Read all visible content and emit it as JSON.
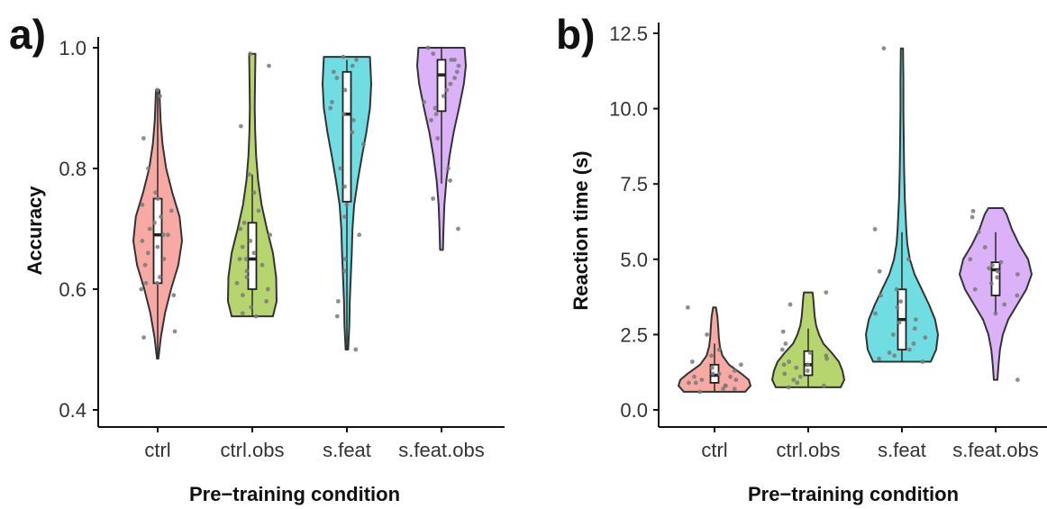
{
  "chart_data": [
    {
      "type": "violin",
      "panel_label": "a)",
      "xlabel": "Pre−training condition",
      "ylabel": "Accuracy",
      "ylim": [
        0.4,
        1.0
      ],
      "yticks": [
        "0.4",
        "0.6",
        "0.8",
        "1.0"
      ],
      "ytick_values": [
        0.4,
        0.6,
        0.8,
        1.0
      ],
      "grid": false,
      "legend": "none",
      "categories": [
        "ctrl",
        "ctrl.obs",
        "s.feat",
        "s.feat.obs"
      ],
      "colors": [
        "#f8a9a4",
        "#b7d56f",
        "#6fdde2",
        "#dbb1f8"
      ],
      "groups": [
        {
          "name": "ctrl",
          "box": {
            "q1": 0.61,
            "median": 0.69,
            "q3": 0.75,
            "whisker_low": 0.485,
            "whisker_high": 0.93
          },
          "violin": {
            "y": [
              0.485,
              0.52,
              0.56,
              0.6,
              0.64,
              0.68,
              0.72,
              0.76,
              0.8,
              0.84,
              0.88,
              0.93
            ],
            "w": [
              0.03,
              0.13,
              0.3,
              0.55,
              0.85,
              1.0,
              0.9,
              0.6,
              0.35,
              0.2,
              0.12,
              0.07
            ]
          },
          "points": [
            0.93,
            0.92,
            0.85,
            0.8,
            0.76,
            0.75,
            0.74,
            0.73,
            0.72,
            0.71,
            0.7,
            0.69,
            0.69,
            0.68,
            0.67,
            0.66,
            0.65,
            0.64,
            0.62,
            0.61,
            0.61,
            0.6,
            0.59,
            0.53,
            0.52
          ]
        },
        {
          "name": "ctrl.obs",
          "box": {
            "q1": 0.6,
            "median": 0.65,
            "q3": 0.71,
            "whisker_low": 0.555,
            "whisker_high": 0.79
          },
          "violin": {
            "y": [
              0.555,
              0.58,
              0.62,
              0.66,
              0.7,
              0.74,
              0.78,
              0.82,
              0.86,
              0.9,
              0.94,
              0.99
            ],
            "w": [
              0.85,
              1.0,
              0.98,
              0.85,
              0.6,
              0.38,
              0.24,
              0.16,
              0.12,
              0.1,
              0.11,
              0.13
            ]
          },
          "points": [
            0.99,
            0.97,
            0.87,
            0.79,
            0.76,
            0.73,
            0.71,
            0.7,
            0.69,
            0.68,
            0.67,
            0.66,
            0.65,
            0.65,
            0.64,
            0.63,
            0.62,
            0.61,
            0.6,
            0.59,
            0.58,
            0.57,
            0.56,
            0.555
          ]
        },
        {
          "name": "s.feat",
          "box": {
            "q1": 0.745,
            "median": 0.89,
            "q3": 0.96,
            "whisker_low": 0.5,
            "whisker_high": 0.98
          },
          "violin": {
            "y": [
              0.5,
              0.54,
              0.58,
              0.62,
              0.66,
              0.7,
              0.74,
              0.78,
              0.82,
              0.86,
              0.9,
              0.94,
              0.985
            ],
            "w": [
              0.05,
              0.1,
              0.12,
              0.16,
              0.2,
              0.23,
              0.3,
              0.45,
              0.62,
              0.8,
              0.95,
              1.0,
              0.95
            ]
          },
          "points": [
            0.985,
            0.98,
            0.97,
            0.96,
            0.95,
            0.93,
            0.91,
            0.9,
            0.89,
            0.88,
            0.86,
            0.84,
            0.8,
            0.77,
            0.74,
            0.72,
            0.69,
            0.65,
            0.63,
            0.58,
            0.555,
            0.5
          ]
        },
        {
          "name": "s.feat.obs",
          "box": {
            "q1": 0.895,
            "median": 0.955,
            "q3": 0.98,
            "whisker_low": 0.775,
            "whisker_high": 1.0
          },
          "violin": {
            "y": [
              0.665,
              0.7,
              0.74,
              0.78,
              0.82,
              0.86,
              0.9,
              0.94,
              0.97,
              1.0
            ],
            "w": [
              0.06,
              0.08,
              0.12,
              0.2,
              0.33,
              0.5,
              0.72,
              0.92,
              1.0,
              0.95
            ]
          },
          "points": [
            1.0,
            0.99,
            0.98,
            0.98,
            0.97,
            0.96,
            0.95,
            0.94,
            0.93,
            0.92,
            0.91,
            0.9,
            0.89,
            0.88,
            0.85,
            0.8,
            0.78,
            0.75,
            0.7
          ]
        }
      ]
    },
    {
      "type": "violin",
      "panel_label": "b)",
      "xlabel": "Pre−training condition",
      "ylabel": "Reaction time (s)",
      "ylim": [
        0,
        12.5
      ],
      "yticks": [
        "0.0",
        "2.5",
        "5.0",
        "7.5",
        "10.0",
        "12.5"
      ],
      "ytick_values": [
        0,
        2.5,
        5.0,
        7.5,
        10.0,
        12.5
      ],
      "grid": false,
      "legend": "none",
      "categories": [
        "ctrl",
        "ctrl.obs",
        "s.feat",
        "s.feat.obs"
      ],
      "colors": [
        "#f8a9a4",
        "#b7d56f",
        "#6fdde2",
        "#dbb1f8"
      ],
      "groups": [
        {
          "name": "ctrl",
          "box": {
            "q1": 0.9,
            "median": 1.15,
            "q3": 1.5,
            "whisker_low": 0.6,
            "whisker_high": 2.2
          },
          "violin": {
            "y": [
              0.6,
              0.8,
              1.0,
              1.2,
              1.5,
              1.8,
              2.1,
              2.4,
              2.8,
              3.1,
              3.4
            ],
            "w": [
              0.85,
              1.0,
              0.95,
              0.75,
              0.4,
              0.22,
              0.15,
              0.12,
              0.1,
              0.08,
              0.04
            ]
          },
          "points": [
            3.4,
            2.5,
            2.0,
            1.8,
            1.6,
            1.5,
            1.4,
            1.3,
            1.2,
            1.2,
            1.1,
            1.1,
            1.0,
            1.0,
            0.9,
            0.9,
            0.8,
            0.8,
            0.7,
            0.7,
            0.6
          ]
        },
        {
          "name": "ctrl.obs",
          "box": {
            "q1": 1.15,
            "median": 1.5,
            "q3": 1.95,
            "whisker_low": 0.75,
            "whisker_high": 2.7
          },
          "violin": {
            "y": [
              0.75,
              1.0,
              1.3,
              1.6,
              1.9,
              2.2,
              2.5,
              2.8,
              3.1,
              3.4,
              3.7,
              3.9
            ],
            "w": [
              0.9,
              1.0,
              0.95,
              0.85,
              0.65,
              0.42,
              0.3,
              0.22,
              0.18,
              0.16,
              0.14,
              0.12
            ]
          },
          "points": [
            3.9,
            3.5,
            2.6,
            2.2,
            2.0,
            1.9,
            1.8,
            1.7,
            1.6,
            1.5,
            1.5,
            1.4,
            1.3,
            1.2,
            1.1,
            1.0,
            0.9,
            0.8,
            0.75
          ]
        },
        {
          "name": "s.feat",
          "box": {
            "q1": 2.0,
            "median": 3.0,
            "q3": 4.0,
            "whisker_low": 1.6,
            "whisker_high": 5.9
          },
          "violin": {
            "y": [
              1.6,
              2.0,
              2.5,
              3.0,
              3.5,
              4.0,
              4.5,
              5.0,
              5.5,
              6.0,
              7.0,
              8.0,
              9.0,
              10.0,
              11.0,
              12.0
            ],
            "w": [
              0.8,
              0.95,
              1.0,
              0.92,
              0.75,
              0.55,
              0.35,
              0.22,
              0.15,
              0.12,
              0.08,
              0.06,
              0.05,
              0.04,
              0.04,
              0.03
            ]
          },
          "points": [
            12.0,
            6.0,
            5.0,
            4.6,
            4.0,
            3.8,
            3.6,
            3.4,
            3.2,
            3.0,
            2.9,
            2.7,
            2.5,
            2.4,
            2.2,
            2.0,
            1.9,
            1.8,
            1.7,
            1.6
          ]
        },
        {
          "name": "s.feat.obs",
          "box": {
            "q1": 3.8,
            "median": 4.65,
            "q3": 4.9,
            "whisker_low": 3.2,
            "whisker_high": 5.9
          },
          "violin": {
            "y": [
              1.0,
              1.5,
              2.0,
              2.5,
              3.0,
              3.5,
              4.0,
              4.5,
              5.0,
              5.5,
              6.0,
              6.5,
              6.7
            ],
            "w": [
              0.05,
              0.08,
              0.12,
              0.2,
              0.35,
              0.6,
              0.85,
              1.0,
              0.9,
              0.65,
              0.45,
              0.3,
              0.2
            ]
          },
          "points": [
            6.6,
            6.4,
            5.9,
            5.4,
            5.0,
            4.9,
            4.8,
            4.7,
            4.6,
            4.5,
            4.4,
            4.2,
            4.0,
            3.8,
            3.5,
            3.2,
            1.0
          ]
        }
      ]
    }
  ]
}
